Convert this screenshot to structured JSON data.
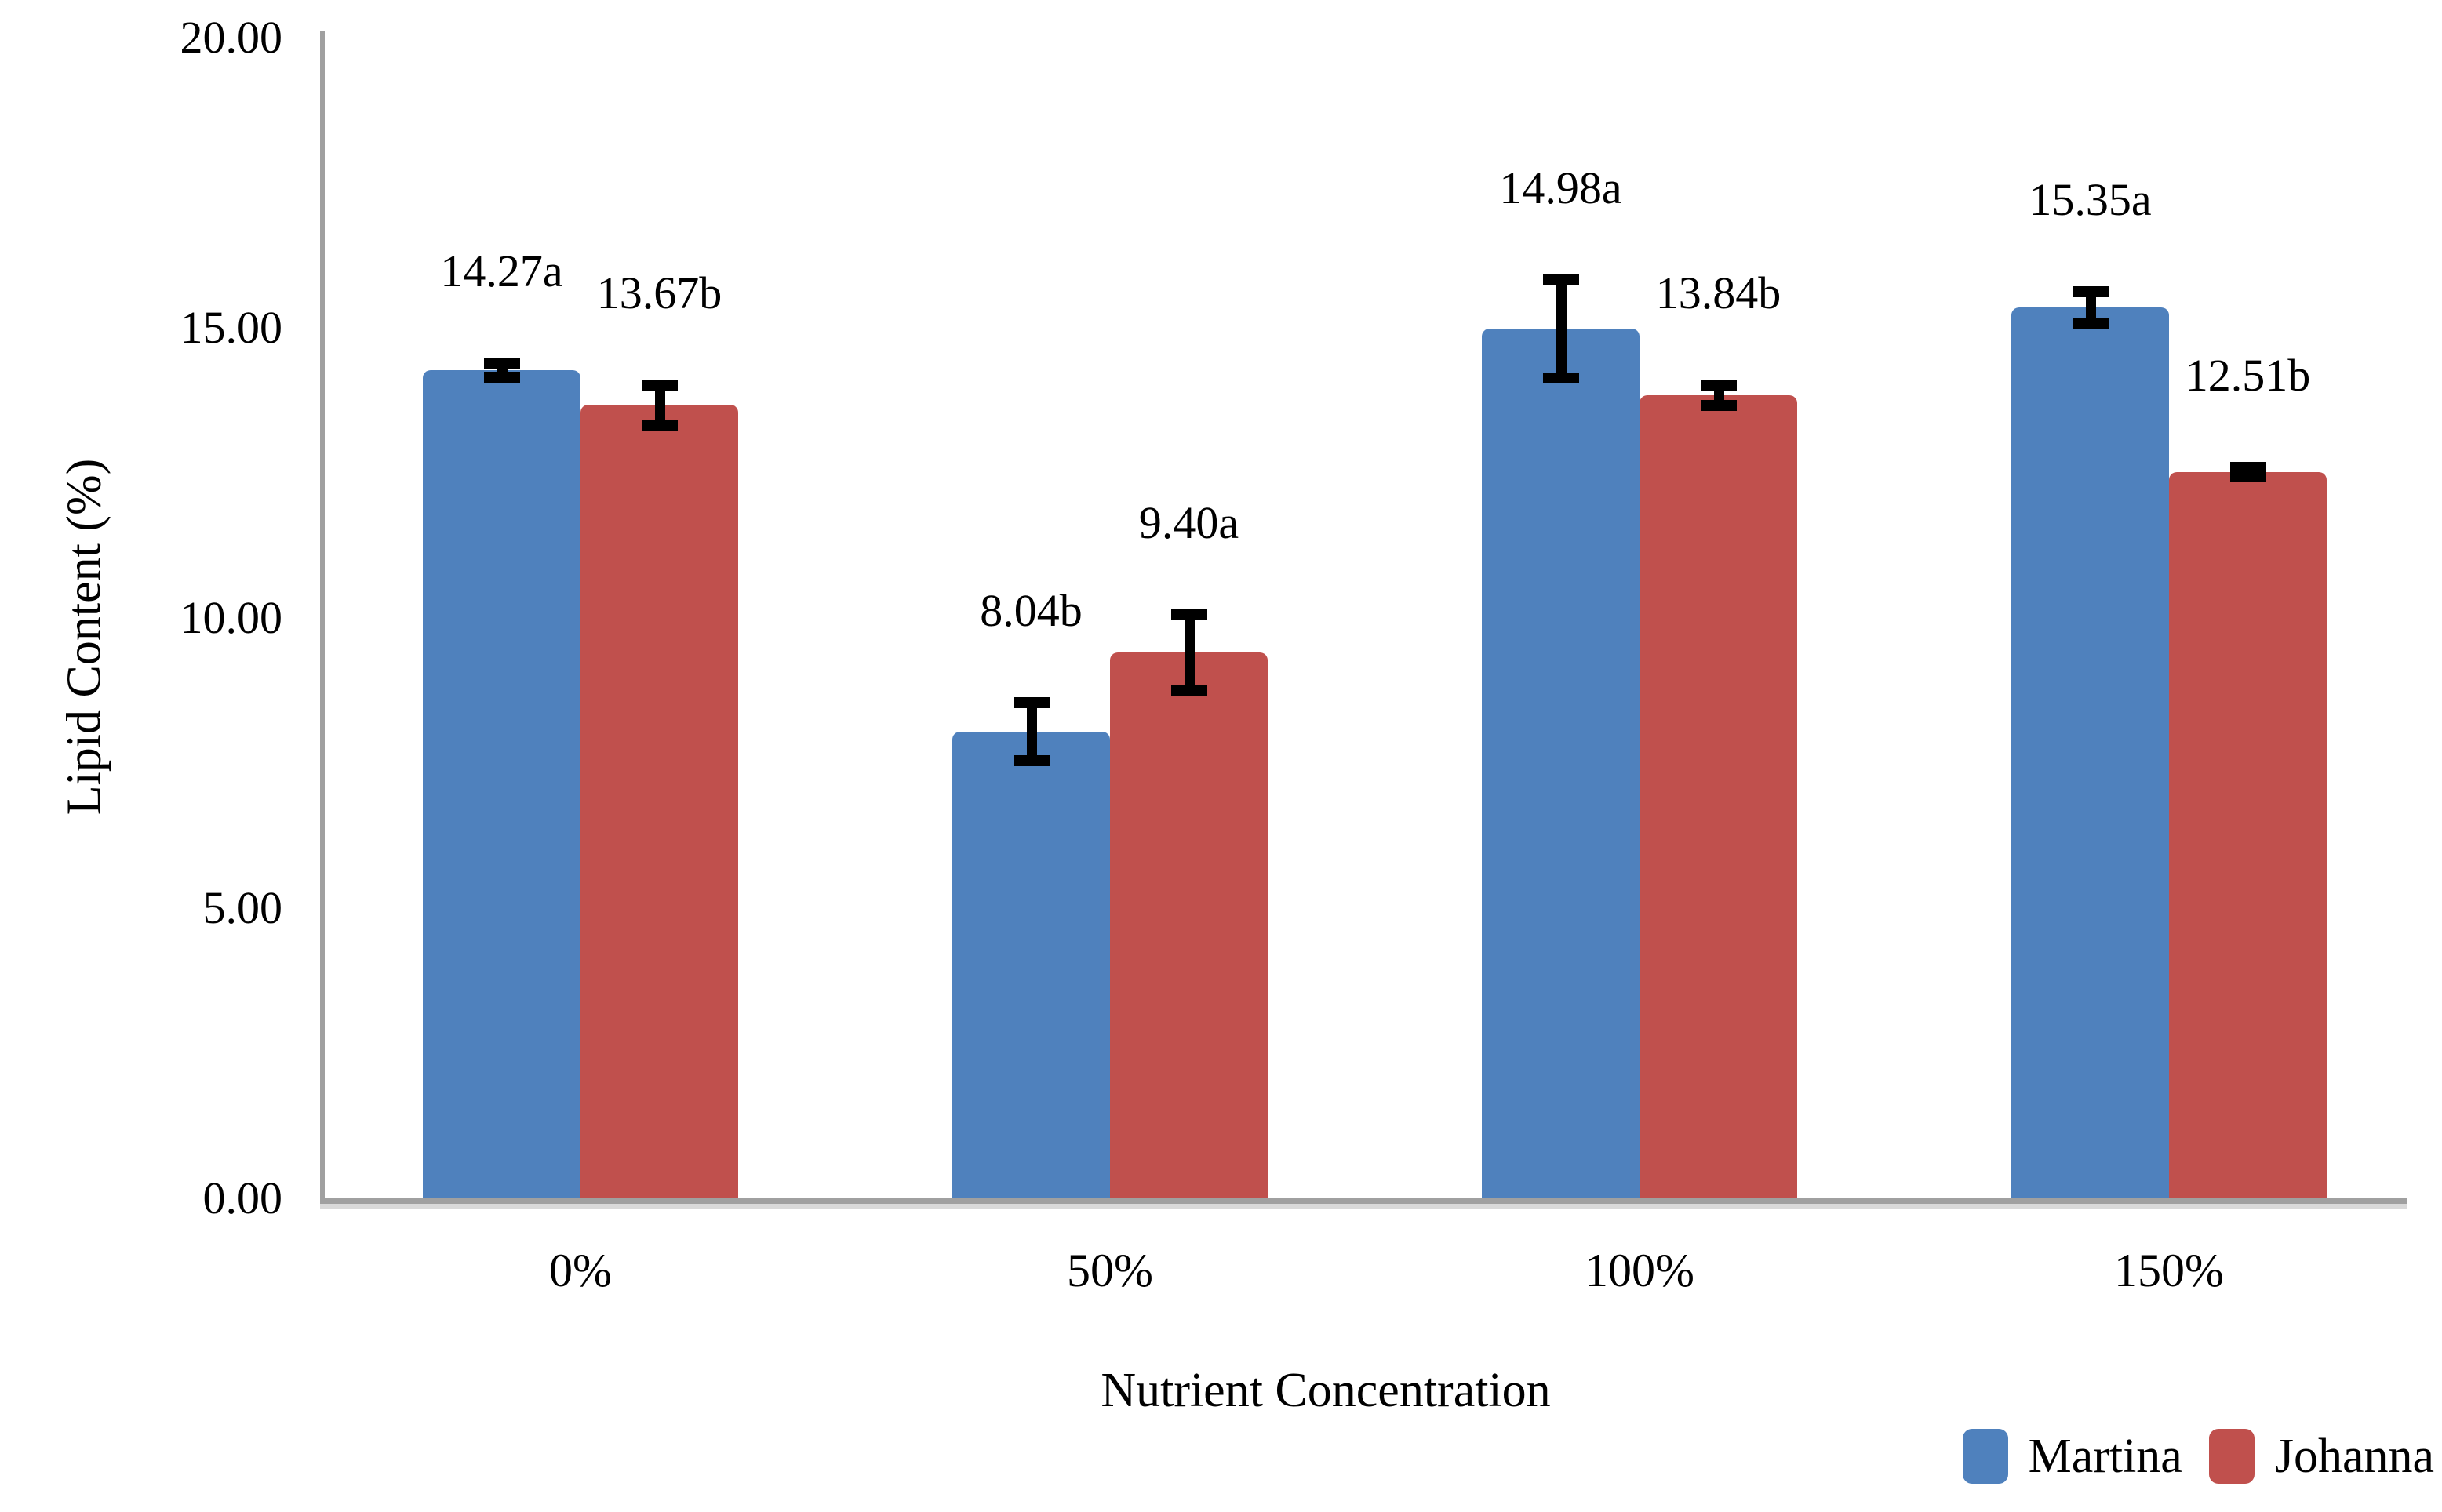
{
  "chart_data": {
    "type": "bar",
    "xlabel": "Nutrient Concentration",
    "ylabel": "Lipid Content (%)",
    "categories": [
      "0%",
      "50%",
      "100%",
      "150%"
    ],
    "series": [
      {
        "name": "Martina",
        "color": "#4F81BD",
        "values": [
          14.27,
          8.04,
          14.98,
          15.35
        ],
        "errors": [
          0.12,
          0.5,
          0.85,
          0.27
        ],
        "labels": [
          "14.27a",
          "8.04b",
          "14.98a",
          "15.35a"
        ]
      },
      {
        "name": "Johanna",
        "color": "#C0504D",
        "values": [
          13.67,
          9.4,
          13.84,
          12.51
        ],
        "errors": [
          0.35,
          0.65,
          0.18,
          0.08
        ],
        "labels": [
          "13.67b",
          "9.40a",
          "13.84b",
          "12.51b"
        ]
      }
    ],
    "yticks": [
      "20.00",
      "15.00",
      "10.00",
      "5.00",
      "0.00"
    ],
    "ytick_values": [
      20,
      15,
      10,
      5,
      0
    ],
    "ylim": [
      0,
      20
    ],
    "grid": false,
    "legend_position": "bottom-right",
    "error_bar_color": "#000000",
    "axis_color": "#A0A0A0"
  }
}
